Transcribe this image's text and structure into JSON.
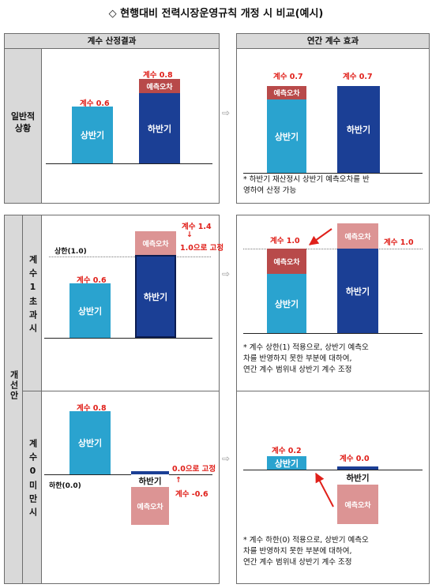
{
  "title": "◇ 현행대비 전력시장운영규칙 개정 시 비교(예시)",
  "headers": {
    "left": "계수 산정결과",
    "right": "연간 계수 효과"
  },
  "side": {
    "general": "일반적\n상황",
    "proposal": "개선안",
    "over1": "계수1초과시",
    "under0": "계수0미만시"
  },
  "sep_arrow": "⇨",
  "labels": {
    "first_half": "상반기",
    "second_half": "하반기",
    "forecast_error": "예측오차"
  },
  "row1": {
    "left_first": "계수 0.6",
    "left_second": "계수 0.8",
    "right_first": "계수 0.7",
    "right_second": "계수 0.7",
    "note": "* 하반기 재산정시 상반기 예측오차를 반\n   영하여 산정 가능"
  },
  "row2": {
    "upper_limit": "상한(1.0)",
    "left_first": "계수 0.6",
    "left_second_a": "계수 1.4",
    "left_second_arrow": "↓",
    "left_second_b": "1.0으로 고정",
    "right_first": "계수 1.0",
    "right_second": "계수 1.0",
    "note": "* 계수 상한(1) 적용으로, 상반기 예측오\n   차를 반영하지 못한 부분에 대하여,\n   연간 계수 범위내 상반기 계수 조정"
  },
  "row3": {
    "lower_limit": "하한(0.0)",
    "left_first": "계수 0.8",
    "left_second_a": "0.0으로 고정",
    "left_second_arrow": "↑",
    "left_second_b": "계수 -0.6",
    "right_first": "계수 0.2",
    "right_second": "계수 0.0",
    "note": "* 계수 하한(0) 적용으로, 상반기 예측오\n   차를 반영하지 못한 부분에 대하여,\n   연간 계수 범위내 상반기 계수 조정"
  },
  "colors": {
    "first_half_bar": "#2aa3cf",
    "second_half_bar": "#1b3f95",
    "forecast_error_dark": "#b84a4a",
    "forecast_error_light": "#dc9494",
    "red_label": "#e0201a",
    "header_gray": "#d9d9d9"
  }
}
